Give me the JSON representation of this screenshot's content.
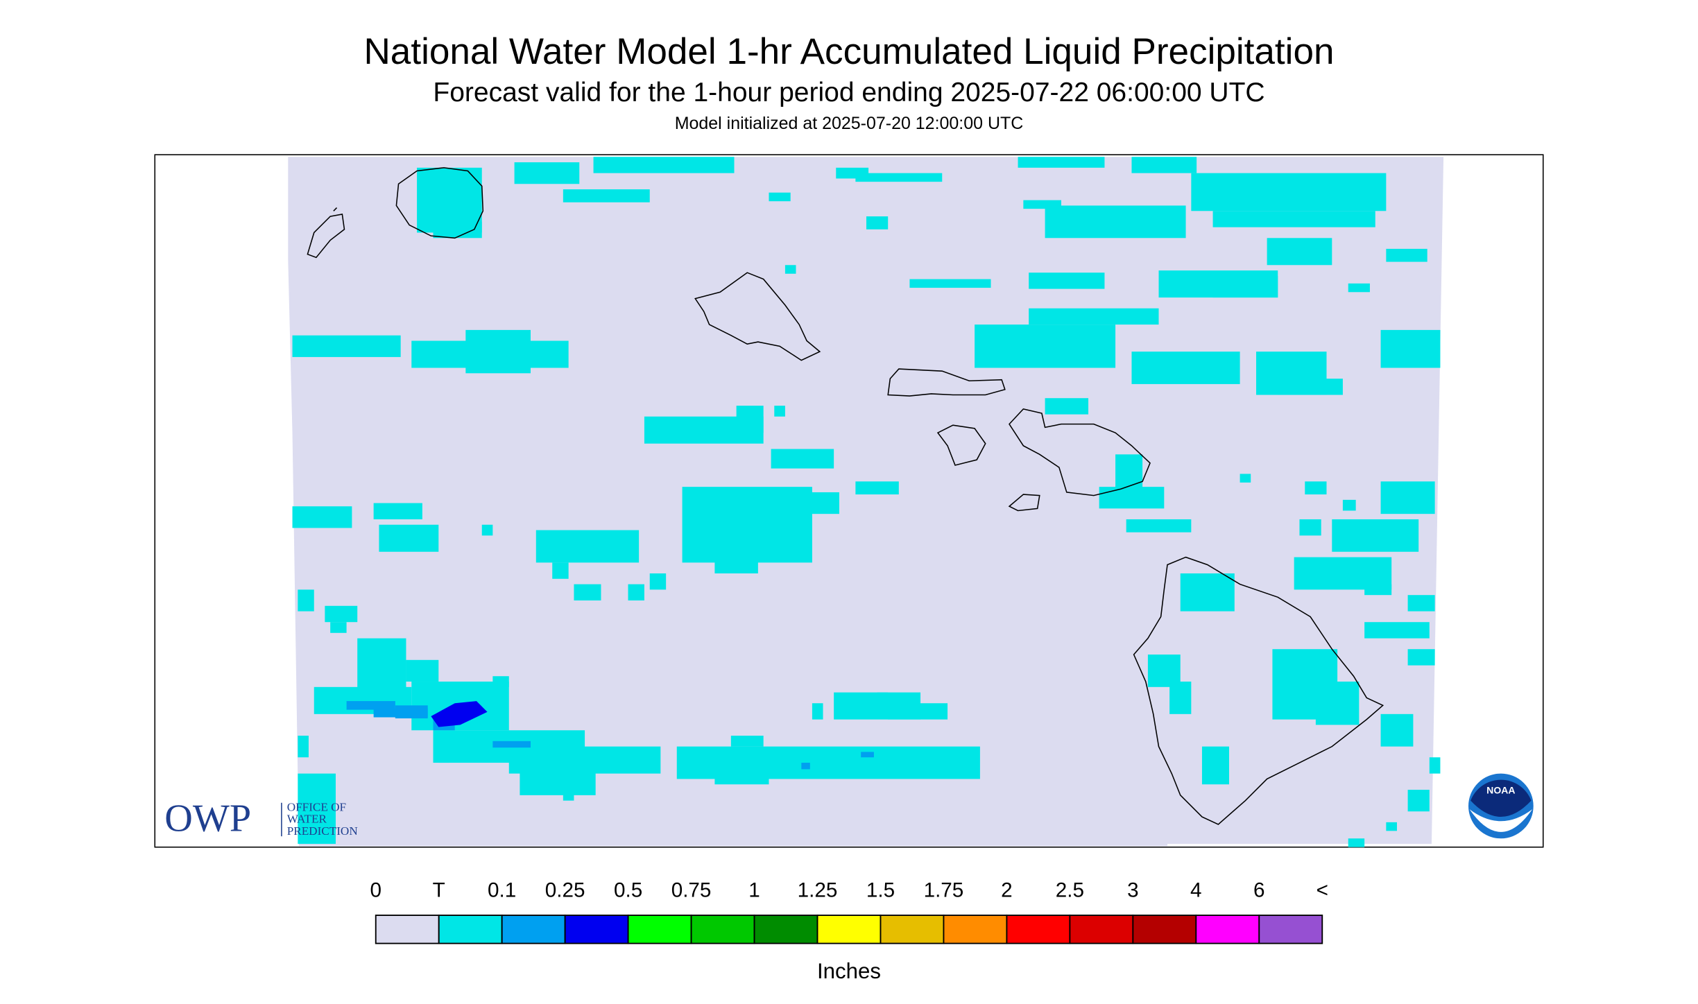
{
  "header": {
    "title": "National Water Model 1-hr Accumulated Liquid Precipitation",
    "subtitle": "Forecast valid for the 1-hour period ending 2025-07-22 06:00:00 UTC",
    "initialized": "Model initialized at 2025-07-20 12:00:00 UTC"
  },
  "legend": {
    "labels": [
      "0",
      "T",
      "0.1",
      "0.25",
      "0.5",
      "0.75",
      "1",
      "1.25",
      "1.5",
      "1.75",
      "2",
      "2.5",
      "3",
      "4",
      "6",
      "<"
    ],
    "colors": [
      "#dcdcf0",
      "#00e6e6",
      "#00a0f0",
      "#0000f0",
      "#00ff00",
      "#00c800",
      "#008c00",
      "#ffff00",
      "#e6be00",
      "#ff8c00",
      "#ff0000",
      "#dc0000",
      "#b40000",
      "#ff00ff",
      "#9650d2"
    ],
    "unit": "Inches"
  },
  "logos": {
    "owp": "OWP",
    "owp_lines": [
      "OFFICE OF",
      "WATER",
      "PREDICTION"
    ],
    "noaa": "NOAA"
  }
}
